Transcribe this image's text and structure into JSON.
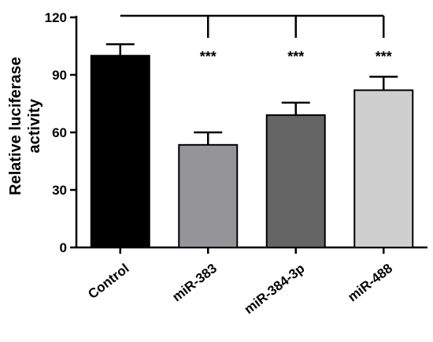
{
  "chart_data": {
    "type": "bar",
    "ylabel_lines": [
      "Relative luciferase",
      "activity"
    ],
    "ylim": [
      0,
      120
    ],
    "yticks": [
      "0",
      "30",
      "60",
      "90",
      "120"
    ],
    "categories": [
      "Control",
      "miR-383",
      "miR-384-3p",
      "miR-488"
    ],
    "values": [
      100,
      53.5,
      69,
      82
    ],
    "errors": [
      6,
      6.5,
      6.5,
      7
    ],
    "colors": [
      "#000000",
      "#959499",
      "#656565",
      "#cfcfcf"
    ],
    "significance": [
      "",
      "***",
      "***",
      "***"
    ]
  }
}
